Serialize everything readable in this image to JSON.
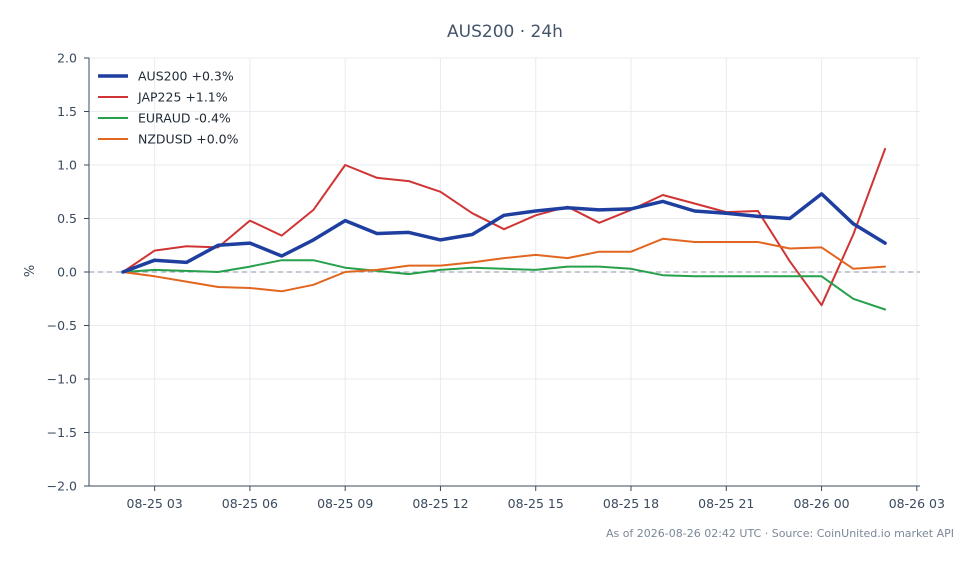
{
  "chart_data": {
    "type": "line",
    "title": "AUS200 · 24h",
    "xlabel": "",
    "ylabel": "%",
    "x_ticks": [
      "08-25 03",
      "08-25 06",
      "08-25 09",
      "08-25 12",
      "08-25 15",
      "08-25 18",
      "08-25 21",
      "08-26 00",
      "08-26 03"
    ],
    "y_ticks": [
      "2.0",
      "1.5",
      "1.0",
      "0.5",
      "0.0",
      "−0.5",
      "−1.0",
      "−1.5",
      "−2.0"
    ],
    "ylim": [
      -2.0,
      2.0
    ],
    "xlim": [
      "08-25 00:56",
      "08-26 03:06"
    ],
    "grid": true,
    "zero_line": true,
    "legend_position": "top-left",
    "x": [
      "08-25 02:00",
      "08-25 03:00",
      "08-25 04:00",
      "08-25 05:00",
      "08-25 06:00",
      "08-25 07:00",
      "08-25 08:00",
      "08-25 09:00",
      "08-25 10:00",
      "08-25 11:00",
      "08-25 12:00",
      "08-25 13:00",
      "08-25 14:00",
      "08-25 15:00",
      "08-25 16:00",
      "08-25 17:00",
      "08-25 18:00",
      "08-25 19:00",
      "08-25 20:00",
      "08-25 21:00",
      "08-25 22:00",
      "08-25 23:00",
      "08-26 00:00",
      "08-26 01:00",
      "08-26 02:00"
    ],
    "series": [
      {
        "name": "AUS200 +0.3%",
        "color": "#1f3fa0",
        "width": 3.5,
        "values": [
          0.0,
          0.11,
          0.09,
          0.25,
          0.27,
          0.15,
          0.3,
          0.48,
          0.36,
          0.37,
          0.3,
          0.35,
          0.53,
          0.57,
          0.6,
          0.58,
          0.59,
          0.66,
          0.57,
          0.55,
          0.52,
          0.5,
          0.73,
          0.45,
          0.27
        ]
      },
      {
        "name": "JAP225 +1.1%",
        "color": "#d03434",
        "width": 2,
        "values": [
          0.0,
          0.2,
          0.24,
          0.23,
          0.48,
          0.34,
          0.58,
          1.0,
          0.88,
          0.85,
          0.75,
          0.55,
          0.4,
          0.53,
          0.61,
          0.46,
          0.58,
          0.72,
          0.64,
          0.56,
          0.57,
          0.1,
          -0.31,
          0.35,
          1.15
        ]
      },
      {
        "name": "EURAUD -0.4%",
        "color": "#27a04c",
        "width": 2,
        "values": [
          0.0,
          0.02,
          0.01,
          0.0,
          0.05,
          0.11,
          0.11,
          0.04,
          0.01,
          -0.02,
          0.02,
          0.04,
          0.03,
          0.02,
          0.05,
          0.05,
          0.03,
          -0.03,
          -0.04,
          -0.04,
          -0.04,
          -0.04,
          -0.04,
          -0.25,
          -0.35
        ]
      },
      {
        "name": "NZDUSD +0.0%",
        "color": "#e2661f",
        "width": 2,
        "values": [
          0.0,
          -0.04,
          -0.09,
          -0.14,
          -0.15,
          -0.18,
          -0.12,
          0.0,
          0.02,
          0.06,
          0.06,
          0.09,
          0.13,
          0.16,
          0.13,
          0.19,
          0.19,
          0.31,
          0.28,
          0.28,
          0.28,
          0.22,
          0.23,
          0.03,
          0.05
        ]
      }
    ],
    "footnote": "As of 2026-08-26 02:42 UTC · Source: CoinUnited.io market API"
  }
}
